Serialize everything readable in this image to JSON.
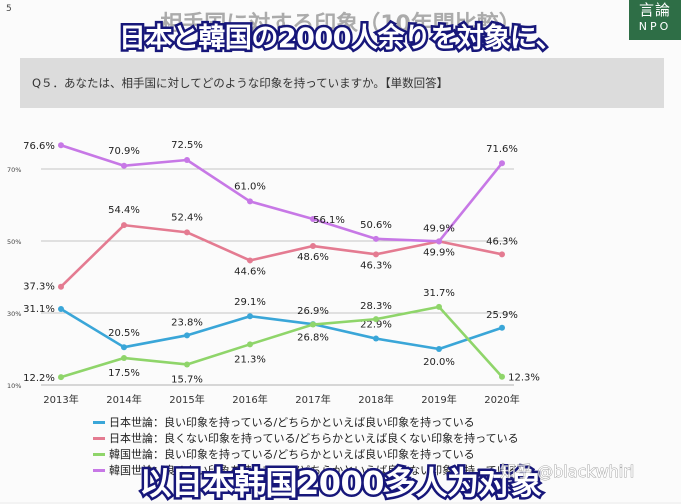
{
  "slide": {
    "page_number": "5",
    "logo_line1": "言論",
    "logo_line2": "NPO",
    "background_title": "相手国に対する印象（10年間比較）",
    "caption_top": "日本と韓国の2000人余りを対象に、",
    "question": "Q５．あなたは、相手国に対してどのような印象を持っていますか。【単数回答】",
    "caption_bottom": "以日本韩国2000多人为对象",
    "watermark": "知乎 @blackwhirl"
  },
  "chart_data": {
    "type": "line",
    "x": [
      "2013年",
      "2014年",
      "2015年",
      "2016年",
      "2017年",
      "2018年",
      "2019年",
      "2020年"
    ],
    "ylim": [
      10,
      80
    ],
    "yticks": [
      {
        "value": 10,
        "label": "10%"
      },
      {
        "value": 30,
        "label": "30%"
      },
      {
        "value": 50,
        "label": "50%"
      },
      {
        "value": 70,
        "label": "70%"
      }
    ],
    "grid_values": [
      30,
      50,
      70
    ],
    "legend_position": "bottom-left",
    "series": [
      {
        "name": "日本世論：良い印象を持っている/どちらかといえば良い印象を持っている",
        "color": "#3aa6d8",
        "values": [
          31.1,
          20.5,
          23.8,
          29.1,
          26.9,
          22.9,
          20.0,
          25.9
        ],
        "labels": [
          "31.1%",
          "20.5%",
          "23.8%",
          "29.1%",
          "26.9%",
          "22.9%",
          "20.0%",
          "25.9%"
        ]
      },
      {
        "name": "日本世論：良くない印象を持っている/どちらかといえば良くない印象を持っている",
        "color": "#e47b91",
        "values": [
          37.3,
          54.4,
          52.4,
          44.6,
          48.6,
          46.3,
          49.9,
          46.3
        ],
        "labels": [
          "37.3%",
          "54.4%",
          "52.4%",
          "44.6%",
          "48.6%",
          "46.3%",
          "49.9%",
          "46.3%"
        ]
      },
      {
        "name": "韓国世論：良い印象を持っている/どちらかといえば良い印象を持っている",
        "color": "#8fd56a",
        "values": [
          12.2,
          17.5,
          15.7,
          21.3,
          26.8,
          28.3,
          31.7,
          12.3
        ],
        "labels": [
          "12.2%",
          "17.5%",
          "15.7%",
          "21.3%",
          "26.8%",
          "28.3%",
          "31.7%",
          "12.3%"
        ]
      },
      {
        "name": "韓国世論：良くない印象を持っている/どちらかといえば良くない印象を持っている",
        "color": "#c778e6",
        "values": [
          76.6,
          70.9,
          72.5,
          61.0,
          56.1,
          50.6,
          49.9,
          71.6
        ],
        "labels": [
          "76.6%",
          "70.9%",
          "72.5%",
          "61.0%",
          "56.1%",
          "50.6%",
          "49.9%",
          "71.6%"
        ]
      }
    ]
  }
}
